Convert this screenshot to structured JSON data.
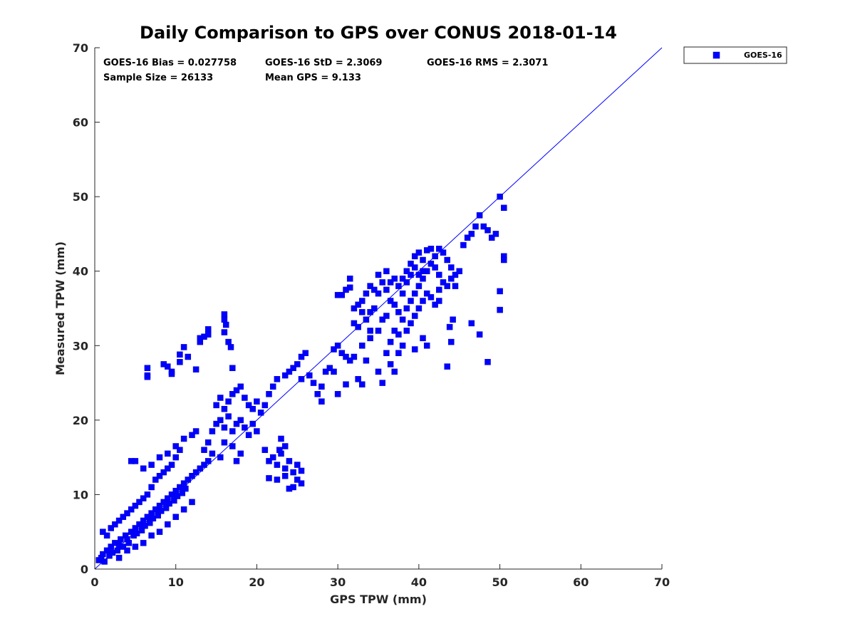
{
  "chart_data": {
    "type": "scatter",
    "title": "Daily Comparison to GPS over CONUS 2018-01-14",
    "xlabel": "GPS TPW (mm)",
    "ylabel": "Measured TPW (mm)",
    "xlim": [
      0,
      70
    ],
    "ylim": [
      0,
      70
    ],
    "xticks": [
      "0",
      "10",
      "20",
      "30",
      "40",
      "50",
      "60",
      "70"
    ],
    "yticks": [
      "0",
      "10",
      "20",
      "30",
      "40",
      "50",
      "60",
      "70"
    ],
    "grid": false,
    "legend_placement": "outside-top-right",
    "series_color": "#0000ff",
    "one_to_one_line": {
      "from": [
        0,
        0
      ],
      "to": [
        70,
        70
      ],
      "color": "#0000ff"
    },
    "stats": {
      "bias": "GOES-16 Bias = 0.027758",
      "std": "GOES-16 StD = 2.3069",
      "rms": "GOES-16 RMS = 2.3071",
      "sample": "Sample Size = 26133",
      "mean": "Mean GPS = 9.133"
    },
    "series": [
      {
        "name": "GOES-16",
        "marker": "square",
        "points": [
          [
            0.5,
            1.2
          ],
          [
            0.8,
            1.5
          ],
          [
            1.0,
            2.0
          ],
          [
            1.2,
            1.0
          ],
          [
            1.5,
            2.5
          ],
          [
            1.8,
            1.8
          ],
          [
            2.0,
            3.0
          ],
          [
            2.2,
            2.2
          ],
          [
            2.5,
            3.5
          ],
          [
            2.8,
            2.5
          ],
          [
            3.0,
            3.2
          ],
          [
            3.2,
            4.0
          ],
          [
            3.5,
            3.0
          ],
          [
            3.8,
            4.5
          ],
          [
            4.0,
            4.0
          ],
          [
            4.2,
            3.5
          ],
          [
            4.5,
            5.0
          ],
          [
            4.8,
            4.5
          ],
          [
            5.0,
            5.5
          ],
          [
            5.2,
            4.8
          ],
          [
            5.5,
            6.0
          ],
          [
            5.8,
            5.2
          ],
          [
            6.0,
            6.5
          ],
          [
            6.2,
            5.8
          ],
          [
            6.5,
            7.0
          ],
          [
            6.8,
            6.2
          ],
          [
            7.0,
            7.5
          ],
          [
            7.2,
            6.8
          ],
          [
            7.5,
            8.0
          ],
          [
            7.8,
            7.2
          ],
          [
            8.0,
            8.5
          ],
          [
            8.2,
            7.8
          ],
          [
            8.5,
            9.0
          ],
          [
            8.8,
            8.2
          ],
          [
            9.0,
            9.5
          ],
          [
            9.2,
            8.8
          ],
          [
            9.5,
            10.0
          ],
          [
            9.8,
            9.2
          ],
          [
            10.0,
            10.5
          ],
          [
            10.2,
            9.8
          ],
          [
            10.5,
            11.0
          ],
          [
            10.8,
            10.2
          ],
          [
            11.0,
            11.5
          ],
          [
            11.2,
            10.8
          ],
          [
            11.5,
            12.0
          ],
          [
            12.0,
            12.5
          ],
          [
            12.5,
            13.0
          ],
          [
            13.0,
            13.5
          ],
          [
            13.5,
            14.0
          ],
          [
            14.0,
            14.5
          ],
          [
            1.0,
            5.0
          ],
          [
            1.5,
            4.5
          ],
          [
            2.0,
            5.5
          ],
          [
            2.5,
            6.0
          ],
          [
            3.0,
            6.5
          ],
          [
            3.5,
            7.0
          ],
          [
            4.0,
            7.5
          ],
          [
            4.5,
            8.0
          ],
          [
            5.0,
            8.5
          ],
          [
            5.5,
            9.0
          ],
          [
            6.0,
            9.5
          ],
          [
            6.5,
            10.0
          ],
          [
            7.0,
            11.0
          ],
          [
            7.5,
            12.0
          ],
          [
            8.0,
            12.5
          ],
          [
            8.5,
            13.0
          ],
          [
            9.0,
            13.5
          ],
          [
            9.5,
            14.0
          ],
          [
            10.0,
            15.0
          ],
          [
            10.5,
            16.0
          ],
          [
            3.0,
            1.5
          ],
          [
            4.0,
            2.5
          ],
          [
            5.0,
            3.0
          ],
          [
            6.0,
            3.5
          ],
          [
            7.0,
            4.5
          ],
          [
            8.0,
            5.0
          ],
          [
            9.0,
            6.0
          ],
          [
            10.0,
            7.0
          ],
          [
            11.0,
            8.0
          ],
          [
            12.0,
            9.0
          ],
          [
            4.5,
            14.5
          ],
          [
            5.0,
            14.5
          ],
          [
            6.0,
            13.5
          ],
          [
            7.0,
            14.0
          ],
          [
            8.0,
            15.0
          ],
          [
            9.0,
            15.5
          ],
          [
            10.0,
            16.5
          ],
          [
            11.0,
            17.5
          ],
          [
            12.0,
            18.0
          ],
          [
            12.5,
            18.5
          ],
          [
            6.5,
            27.0
          ],
          [
            6.5,
            26.0
          ],
          [
            6.5,
            25.8
          ],
          [
            8.5,
            27.5
          ],
          [
            9.0,
            27.2
          ],
          [
            9.5,
            26.5
          ],
          [
            9.5,
            26.2
          ],
          [
            10.5,
            28.8
          ],
          [
            11.0,
            29.8
          ],
          [
            11.5,
            28.5
          ],
          [
            10.5,
            27.8
          ],
          [
            12.5,
            26.8
          ],
          [
            13.0,
            30.5
          ],
          [
            13.5,
            31.2
          ],
          [
            13.0,
            31.0
          ],
          [
            14.0,
            32.2
          ],
          [
            14.0,
            31.5
          ],
          [
            16.0,
            34.2
          ],
          [
            16.0,
            33.5
          ],
          [
            16.2,
            32.8
          ],
          [
            16.0,
            31.8
          ],
          [
            16.5,
            30.5
          ],
          [
            16.8,
            29.8
          ],
          [
            17.0,
            27.0
          ],
          [
            15.0,
            22.0
          ],
          [
            15.5,
            23.0
          ],
          [
            16.0,
            21.5
          ],
          [
            16.5,
            22.5
          ],
          [
            17.0,
            23.5
          ],
          [
            17.5,
            24.0
          ],
          [
            18.0,
            24.5
          ],
          [
            18.5,
            23.0
          ],
          [
            19.0,
            22.0
          ],
          [
            19.5,
            21.5
          ],
          [
            20.0,
            22.5
          ],
          [
            20.5,
            21.0
          ],
          [
            21.0,
            22.0
          ],
          [
            21.5,
            23.5
          ],
          [
            22.0,
            24.5
          ],
          [
            22.5,
            25.5
          ],
          [
            14.0,
            17.0
          ],
          [
            14.5,
            18.5
          ],
          [
            15.0,
            19.5
          ],
          [
            15.5,
            20.0
          ],
          [
            16.0,
            19.0
          ],
          [
            16.5,
            20.5
          ],
          [
            17.0,
            18.5
          ],
          [
            17.5,
            19.5
          ],
          [
            18.0,
            20.0
          ],
          [
            18.5,
            19.0
          ],
          [
            19.0,
            18.0
          ],
          [
            19.5,
            19.5
          ],
          [
            20.0,
            18.5
          ],
          [
            16.0,
            17.0
          ],
          [
            17.0,
            16.5
          ],
          [
            18.0,
            15.5
          ],
          [
            17.5,
            14.5
          ],
          [
            15.5,
            15.0
          ],
          [
            14.5,
            15.5
          ],
          [
            13.5,
            16.0
          ],
          [
            22.0,
            15.0
          ],
          [
            22.5,
            14.0
          ],
          [
            23.0,
            15.5
          ],
          [
            23.5,
            13.5
          ],
          [
            24.0,
            14.5
          ],
          [
            24.5,
            13.0
          ],
          [
            25.0,
            12.0
          ],
          [
            24.5,
            11.0
          ],
          [
            23.5,
            12.5
          ],
          [
            22.5,
            12.0
          ],
          [
            21.5,
            14.5
          ],
          [
            21.0,
            16.0
          ],
          [
            23.0,
            17.5
          ],
          [
            23.5,
            16.5
          ],
          [
            25.0,
            14.0
          ],
          [
            25.5,
            13.2
          ],
          [
            24.0,
            10.8
          ],
          [
            25.5,
            11.5
          ],
          [
            21.5,
            12.2
          ],
          [
            22.8,
            16.0
          ],
          [
            23.5,
            26.0
          ],
          [
            24.0,
            26.5
          ],
          [
            24.5,
            27.0
          ],
          [
            25.0,
            27.5
          ],
          [
            25.5,
            28.5
          ],
          [
            26.0,
            29.0
          ],
          [
            25.5,
            25.5
          ],
          [
            26.5,
            26.0
          ],
          [
            27.0,
            25.0
          ],
          [
            27.5,
            23.5
          ],
          [
            28.0,
            24.5
          ],
          [
            28.0,
            22.5
          ],
          [
            28.5,
            26.5
          ],
          [
            29.0,
            27.0
          ],
          [
            29.5,
            29.5
          ],
          [
            30.0,
            30.0
          ],
          [
            30.5,
            29.0
          ],
          [
            31.0,
            28.5
          ],
          [
            31.5,
            28.0
          ],
          [
            32.0,
            28.5
          ],
          [
            30.0,
            36.8
          ],
          [
            30.5,
            36.8
          ],
          [
            31.0,
            37.5
          ],
          [
            31.5,
            37.8
          ],
          [
            32.0,
            35.0
          ],
          [
            32.5,
            35.5
          ],
          [
            33.0,
            36.0
          ],
          [
            33.5,
            37.0
          ],
          [
            34.0,
            38.0
          ],
          [
            34.5,
            37.5
          ],
          [
            35.0,
            39.5
          ],
          [
            35.5,
            38.5
          ],
          [
            36.0,
            40.0
          ],
          [
            36.5,
            36.0
          ],
          [
            37.0,
            35.5
          ],
          [
            37.5,
            34.5
          ],
          [
            38.0,
            33.5
          ],
          [
            38.5,
            35.0
          ],
          [
            39.0,
            36.0
          ],
          [
            39.5,
            37.0
          ],
          [
            40.0,
            38.0
          ],
          [
            40.5,
            39.0
          ],
          [
            41.0,
            40.0
          ],
          [
            41.5,
            41.0
          ],
          [
            42.0,
            42.0
          ],
          [
            42.5,
            43.0
          ],
          [
            43.0,
            42.5
          ],
          [
            43.5,
            41.5
          ],
          [
            44.0,
            40.5
          ],
          [
            44.5,
            39.5
          ],
          [
            45.0,
            40.0
          ],
          [
            45.5,
            43.5
          ],
          [
            46.0,
            44.5
          ],
          [
            46.5,
            45.0
          ],
          [
            47.0,
            46.0
          ],
          [
            47.5,
            47.5
          ],
          [
            48.0,
            46.0
          ],
          [
            48.5,
            45.5
          ],
          [
            49.0,
            44.5
          ],
          [
            49.5,
            45.0
          ],
          [
            50.0,
            50.0
          ],
          [
            50.5,
            48.5
          ],
          [
            50.5,
            42.0
          ],
          [
            50.5,
            41.5
          ],
          [
            50.0,
            37.3
          ],
          [
            50.0,
            34.8
          ],
          [
            48.5,
            27.8
          ],
          [
            47.5,
            31.5
          ],
          [
            46.5,
            33.0
          ],
          [
            44.0,
            30.5
          ],
          [
            43.5,
            27.2
          ],
          [
            43.8,
            32.5
          ],
          [
            44.2,
            33.5
          ],
          [
            42.5,
            36.0
          ],
          [
            41.0,
            30.0
          ],
          [
            40.5,
            31.0
          ],
          [
            39.5,
            29.5
          ],
          [
            37.5,
            29.0
          ],
          [
            37.0,
            26.5
          ],
          [
            36.5,
            27.5
          ],
          [
            36.0,
            29.0
          ],
          [
            35.5,
            25.0
          ],
          [
            35.0,
            26.5
          ],
          [
            34.0,
            31.0
          ],
          [
            33.5,
            28.0
          ],
          [
            33.0,
            24.8
          ],
          [
            32.5,
            25.5
          ],
          [
            30.0,
            23.5
          ],
          [
            31.0,
            24.8
          ],
          [
            29.5,
            26.5
          ],
          [
            35.0,
            32.0
          ],
          [
            35.5,
            33.5
          ],
          [
            36.0,
            34.0
          ],
          [
            36.5,
            30.5
          ],
          [
            37.0,
            32.0
          ],
          [
            37.5,
            31.5
          ],
          [
            38.0,
            30.0
          ],
          [
            38.5,
            32.0
          ],
          [
            39.0,
            33.0
          ],
          [
            39.5,
            34.0
          ],
          [
            40.0,
            35.0
          ],
          [
            40.5,
            36.0
          ],
          [
            41.0,
            37.0
          ],
          [
            41.5,
            36.5
          ],
          [
            42.0,
            35.5
          ],
          [
            42.5,
            37.5
          ],
          [
            43.0,
            38.5
          ],
          [
            43.5,
            38.0
          ],
          [
            44.0,
            39.0
          ],
          [
            44.5,
            38.0
          ],
          [
            38.0,
            39.0
          ],
          [
            38.5,
            40.0
          ],
          [
            39.0,
            41.0
          ],
          [
            39.5,
            42.0
          ],
          [
            40.0,
            42.5
          ],
          [
            40.5,
            41.5
          ],
          [
            41.0,
            42.8
          ],
          [
            41.5,
            43.0
          ],
          [
            42.0,
            40.5
          ],
          [
            42.5,
            39.5
          ],
          [
            31.5,
            39.0
          ],
          [
            32.0,
            33.0
          ],
          [
            32.5,
            32.5
          ],
          [
            33.0,
            30.0
          ],
          [
            33.5,
            33.5
          ],
          [
            34.0,
            34.5
          ],
          [
            34.5,
            35.0
          ],
          [
            34.0,
            32.0
          ],
          [
            33.0,
            34.5
          ],
          [
            35.0,
            37.0
          ],
          [
            36.0,
            37.5
          ],
          [
            36.5,
            38.5
          ],
          [
            37.0,
            39.0
          ],
          [
            37.5,
            38.0
          ],
          [
            38.0,
            37.0
          ],
          [
            38.5,
            38.5
          ],
          [
            39.0,
            39.5
          ],
          [
            39.5,
            40.5
          ],
          [
            40.0,
            39.5
          ],
          [
            40.5,
            40.0
          ]
        ]
      }
    ]
  }
}
